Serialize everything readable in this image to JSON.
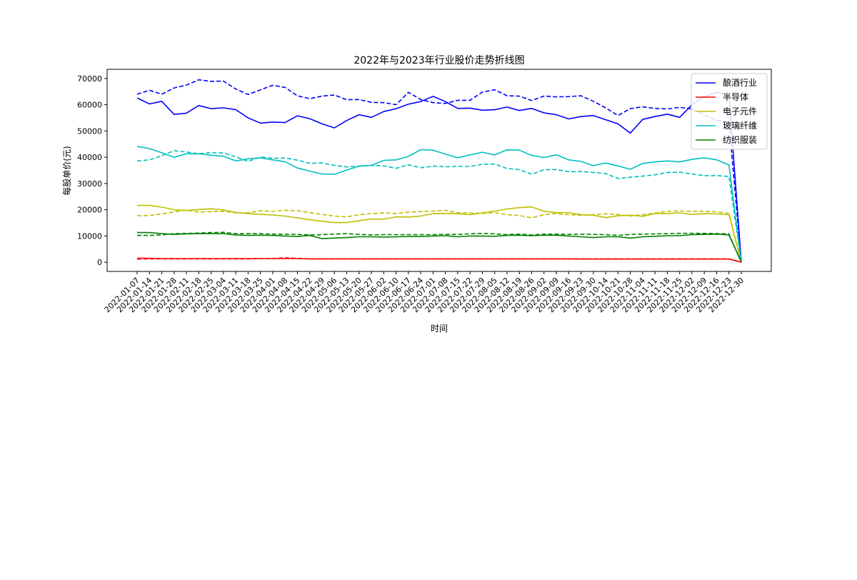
{
  "chart_data": {
    "type": "line",
    "title": "2022年与2023年行业股价走势折线图",
    "xlabel": "时间",
    "ylabel": "每股单价(元)",
    "ylim": [
      -3500,
      73500
    ],
    "yticks": [
      0,
      10000,
      20000,
      30000,
      40000,
      50000,
      60000,
      70000
    ],
    "grid": false,
    "legend_position": "top-right",
    "x": [
      "2022-01-07",
      "2022-01-14",
      "2022-01-21",
      "2022-01-28",
      "2022-02-11",
      "2022-02-18",
      "2022-02-25",
      "2022-03-04",
      "2022-03-11",
      "2022-03-18",
      "2022-03-25",
      "2022-04-01",
      "2022-04-08",
      "2022-04-15",
      "2022-04-22",
      "2022-04-29",
      "2022-05-06",
      "2022-05-13",
      "2022-05-20",
      "2022-05-27",
      "2022-06-02",
      "2022-06-10",
      "2022-06-17",
      "2022-06-24",
      "2022-07-01",
      "2022-07-08",
      "2022-07-15",
      "2022-07-22",
      "2022-07-29",
      "2022-08-05",
      "2022-08-12",
      "2022-08-19",
      "2022-08-26",
      "2022-09-02",
      "2022-09-09",
      "2022-09-16",
      "2022-09-23",
      "2022-09-30",
      "2022-10-14",
      "2022-10-21",
      "2022-10-28",
      "2022-11-04",
      "2022-11-11",
      "2022-11-18",
      "2022-11-25",
      "2022-12-02",
      "2022-12-09",
      "2022-12-16",
      "2022-12-23",
      "2022-12-30"
    ],
    "series": [
      {
        "name": "酿酒行业",
        "color": "#0000ff",
        "solid": [
          62600,
          60300,
          61300,
          56300,
          56800,
          59700,
          58500,
          58800,
          58100,
          55000,
          53000,
          53400,
          53200,
          55800,
          54700,
          52700,
          51200,
          54000,
          56200,
          55200,
          57400,
          58500,
          60200,
          61200,
          63200,
          61200,
          58600,
          58700,
          57900,
          58100,
          59100,
          57800,
          58600,
          56900,
          56200,
          54600,
          55500,
          55900,
          54300,
          52700,
          49200,
          54400,
          55500,
          56400,
          55200,
          60000,
          63000,
          64800,
          63700,
          0
        ],
        "dashed": [
          64000,
          65500,
          64000,
          66400,
          67500,
          69500,
          68900,
          69000,
          66000,
          63900,
          65700,
          67400,
          66600,
          63400,
          62300,
          63300,
          63700,
          61900,
          62000,
          60900,
          60800,
          60000,
          64700,
          62000,
          60800,
          60500,
          61700,
          61700,
          64800,
          65700,
          63400,
          63300,
          61600,
          63300,
          63000,
          63100,
          63400,
          61300,
          58800,
          55900,
          58500,
          59200,
          58600,
          58400,
          59000,
          58400,
          56100,
          54100,
          53300,
          0
        ]
      },
      {
        "name": "半导体",
        "color": "#ff0000",
        "solid": [
          1500,
          1500,
          1400,
          1400,
          1400,
          1400,
          1400,
          1400,
          1400,
          1400,
          1400,
          1400,
          1400,
          1400,
          1300,
          1300,
          1300,
          1300,
          1300,
          1300,
          1300,
          1300,
          1300,
          1300,
          1300,
          1300,
          1300,
          1300,
          1300,
          1300,
          1300,
          1300,
          1300,
          1300,
          1300,
          1300,
          1200,
          1200,
          1200,
          1200,
          1200,
          1200,
          1200,
          1200,
          1200,
          1200,
          1200,
          1200,
          1200,
          0
        ],
        "dashed": [
          1200,
          1300,
          1300,
          1300,
          1300,
          1300,
          1300,
          1300,
          1300,
          1300,
          1400,
          1400,
          1700,
          1500,
          1300,
          1300,
          1300,
          1300,
          1300,
          1300,
          1300,
          1300,
          1300,
          1300,
          1300,
          1300,
          1300,
          1300,
          1300,
          1300,
          1300,
          1300,
          1300,
          1300,
          1300,
          1300,
          1300,
          1300,
          1300,
          1300,
          1300,
          1300,
          1300,
          1300,
          1300,
          1300,
          1300,
          1300,
          1300,
          0
        ]
      },
      {
        "name": "电子元件",
        "color": "#bfbf00",
        "solid": [
          21600,
          21700,
          21000,
          20000,
          19700,
          20100,
          20400,
          19900,
          19000,
          18500,
          18200,
          18000,
          17600,
          16900,
          16200,
          15600,
          15100,
          15100,
          15800,
          16500,
          16400,
          17300,
          17200,
          17600,
          18500,
          18600,
          18500,
          18100,
          18800,
          19500,
          20300,
          20800,
          21100,
          19400,
          18900,
          18900,
          18100,
          17900,
          17000,
          17700,
          17900,
          17500,
          18600,
          18500,
          18800,
          18200,
          18500,
          18400,
          18100,
          0
        ],
        "dashed": [
          17700,
          17800,
          18400,
          19200,
          19900,
          19100,
          19300,
          19400,
          18800,
          18800,
          19600,
          19400,
          19800,
          19600,
          18900,
          18200,
          17600,
          17300,
          18100,
          18500,
          18800,
          18500,
          19100,
          19300,
          19500,
          19800,
          18800,
          18800,
          18600,
          18900,
          18100,
          17800,
          16900,
          18100,
          18500,
          18100,
          17900,
          18100,
          18400,
          18200,
          17600,
          18100,
          18700,
          19400,
          19500,
          19400,
          19400,
          19200,
          18600,
          0
        ]
      },
      {
        "name": "玻璃纤维",
        "color": "#00bfbf",
        "solid": [
          44100,
          43300,
          41700,
          40000,
          41300,
          41300,
          40800,
          40400,
          38600,
          39400,
          39800,
          39000,
          38300,
          35900,
          34700,
          33600,
          33500,
          35100,
          36600,
          36900,
          38800,
          39000,
          40300,
          42900,
          42700,
          41200,
          39800,
          40900,
          41900,
          40900,
          42800,
          42700,
          40700,
          39900,
          40900,
          39000,
          38400,
          36800,
          37800,
          36700,
          35400,
          37600,
          38200,
          38600,
          38200,
          39200,
          39800,
          39000,
          37000,
          0
        ],
        "dashed": [
          38600,
          39000,
          40600,
          42500,
          42000,
          41300,
          41800,
          41600,
          40200,
          38400,
          40100,
          39600,
          39700,
          38900,
          37700,
          37800,
          36900,
          36300,
          36600,
          36900,
          36700,
          35800,
          37100,
          36000,
          36600,
          36400,
          36500,
          36500,
          37300,
          37400,
          35700,
          35300,
          33500,
          35300,
          35300,
          34500,
          34500,
          34200,
          33800,
          31900,
          32400,
          32800,
          33300,
          34200,
          34300,
          33600,
          33000,
          33000,
          32700,
          0
        ]
      },
      {
        "name": "纺织服装",
        "color": "#008000",
        "solid": [
          11300,
          11300,
          10900,
          10600,
          10800,
          10900,
          10900,
          10900,
          10400,
          10200,
          10300,
          10200,
          10000,
          9800,
          10200,
          9000,
          9200,
          9400,
          9700,
          9700,
          9600,
          9700,
          9800,
          9800,
          10000,
          10100,
          9700,
          10000,
          10000,
          9900,
          10200,
          10300,
          10100,
          10300,
          10300,
          10000,
          9700,
          9400,
          9700,
          9700,
          9200,
          9700,
          9900,
          10100,
          10100,
          10500,
          10600,
          10700,
          10400,
          0
        ],
        "dashed": [
          10200,
          10200,
          10400,
          10900,
          11000,
          11100,
          11300,
          11400,
          10900,
          10900,
          10900,
          10700,
          10700,
          10600,
          10400,
          10500,
          10700,
          10900,
          10600,
          10400,
          10500,
          10500,
          10500,
          10500,
          10500,
          10600,
          10600,
          10800,
          11000,
          10800,
          10500,
          10700,
          10400,
          10700,
          10700,
          10600,
          10700,
          10600,
          10500,
          10200,
          10600,
          10700,
          10800,
          10900,
          11000,
          11000,
          11000,
          10900,
          10800,
          0
        ]
      }
    ]
  }
}
